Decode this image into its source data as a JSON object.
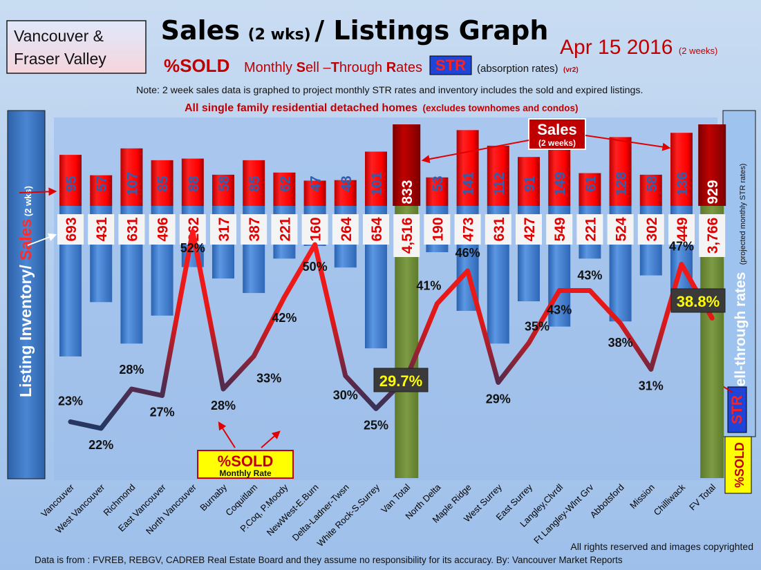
{
  "header": {
    "region_line1": "Vancouver &",
    "region_line2": "Fraser Valley",
    "title_main": "Sales",
    "title_paren": "(2 wks)",
    "title_rest": "/ Listings Graph",
    "date_main": "Apr 15 2016",
    "date_suffix": "(2 weeks)",
    "subtitle_sold": "%SOLD",
    "subtitle_rate_parts": [
      "Monthly ",
      "S",
      "ell –",
      "T",
      "hrough ",
      "R",
      "ates"
    ],
    "str_badge": "STR",
    "absorption": "(absorption rates)",
    "version": "(vr2)",
    "note": "Note: 2 week sales data is graphed to project monthly STR rates and inventory includes the sold and expired listings.",
    "scope_main": "All single family residential detached homes",
    "scope_paren": "(excludes townhomes and condos)"
  },
  "left_axis": {
    "label_a": "Listing Inventory/ ",
    "label_b": "Sales",
    "label_c": " (2 wks)"
  },
  "right_axis": {
    "label_main": "Sell-through rates",
    "label_small": "(projected monthly STR rates)",
    "str_badge": "STR",
    "sold_badge": "%SOLD"
  },
  "callouts": {
    "sales_title": "Sales",
    "sales_sub": "(2 weeks)",
    "sold_title": "%SOLD",
    "sold_sub": "Monthly Rate"
  },
  "footer": {
    "rights": "All rights reserved and  images copyrighted",
    "source": "Data is from : FVREB, REBGV, CADREB Real Estate Board and they assume no responsibility  for its accuracy. By: Vancouver Market Reports"
  },
  "colors": {
    "background": "#9fc0ea",
    "sales_bar": "#ff0000",
    "sales_total_bar": "#c00000",
    "inventory_bar": "#3f7fd6",
    "total_bar": "#76923c",
    "str_line": "#e81818",
    "str_line_low": "#1f3864"
  },
  "chart_data": {
    "type": "bar",
    "categories": [
      "Vancouver",
      "West Vancouver",
      "Richmond",
      "East Vancouver",
      "North Vancouver",
      "Burnaby",
      "Coquitlam",
      "P.Coq, P.Moody",
      "NewWest-E.Burn",
      "Delta-Ladner-Twsn",
      "White Rock-S.Surrey",
      "Van Total",
      "North Delta",
      "Maple Ridge",
      "West Surrey",
      "East Surrey",
      "Langley,Clvrdl",
      "Ft Langley-Wlnt Grv",
      "Abbotsford",
      "Mission",
      "Chilliwack",
      "FV Total"
    ],
    "series": [
      {
        "name": "Sales",
        "values": [
          95,
          57,
          107,
          85,
          88,
          58,
          85,
          62,
          47,
          48,
          101,
          833,
          53,
          141,
          112,
          91,
          149,
          61,
          128,
          58,
          136,
          929
        ]
      },
      {
        "name": "Listing Inventory",
        "values": [
          693,
          431,
          631,
          496,
          262,
          317,
          387,
          221,
          160,
          264,
          654,
          4516,
          190,
          473,
          631,
          427,
          549,
          221,
          524,
          302,
          449,
          3766
        ]
      }
    ],
    "value_labels": {
      "sales": [
        "95",
        "57",
        "107",
        "85",
        "88",
        "58",
        "85",
        "62",
        "47",
        "48",
        "101",
        "833",
        "53",
        "141",
        "112",
        "91",
        "149",
        "61",
        "128",
        "58",
        "136",
        "929"
      ],
      "inventory": [
        "693",
        "431",
        "631",
        "496",
        "262",
        "317",
        "387",
        "221",
        "160",
        "264",
        "654",
        "4,516",
        "190",
        "473",
        "631",
        "427",
        "549",
        "221",
        "524",
        "302",
        "449",
        "3,766"
      ]
    },
    "str_percent": [
      23,
      22,
      28,
      27,
      52,
      28,
      33,
      42,
      50,
      30,
      25,
      29.7,
      41,
      46,
      29,
      35,
      43,
      43,
      38,
      31,
      47,
      38.8
    ],
    "str_labels": [
      "23%",
      "22%",
      "28%",
      "27%",
      "52%",
      "28%",
      "33%",
      "42%",
      "50%",
      "30%",
      "25%",
      "29.7%",
      "41%",
      "46%",
      "29%",
      "35%",
      "43%",
      "43%",
      "38%",
      "31%",
      "47%",
      "38.8%"
    ],
    "total_indices": [
      11,
      21
    ],
    "legend": [
      "Sales",
      "Listing Inventory",
      "%SOLD Monthly Rate"
    ],
    "grid": false
  }
}
